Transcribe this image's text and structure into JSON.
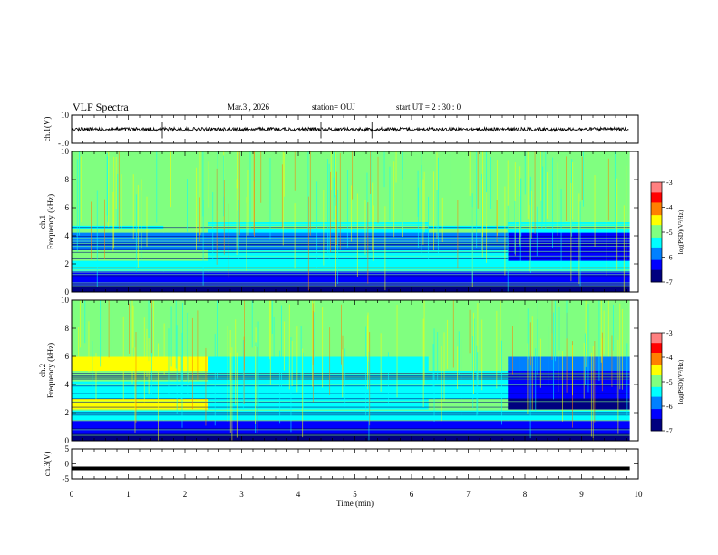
{
  "header": {
    "title": "VLF Spectra",
    "date": "Mar.3 , 2026",
    "station": "station= OUJ",
    "start": "start UT = 2 : 30 : 0"
  },
  "chart_data": [
    {
      "type": "line",
      "title": "",
      "ylabel": "ch.1(V)",
      "xlim": [
        0,
        10
      ],
      "ylim": [
        -10,
        10
      ],
      "yticks": [
        "10",
        "-10"
      ],
      "series": [
        {
          "values_description_level": 0,
          "values": [
            0.2,
            -0.3,
            0.4,
            -0.2,
            0.1,
            -0.4,
            0.3,
            0.0,
            -0.2,
            0.2
          ]
        }
      ]
    },
    {
      "type": "heatmap",
      "ylabel": "ch.1",
      "ylabel2": "Frequency (kHz)",
      "xlim": [
        0,
        10
      ],
      "ylim": [
        0,
        10
      ],
      "yticks": [
        "0",
        "2",
        "4",
        "6",
        "8",
        "10"
      ],
      "colorbar": {
        "label": "log(PSD)(V²/Hz)",
        "ticks": [
          "-3",
          "-4",
          "-5",
          "-6",
          "-7"
        ],
        "range": [
          -7,
          -3
        ]
      }
    },
    {
      "type": "heatmap",
      "ylabel": "ch.2",
      "ylabel2": "Frequency (kHz)",
      "xlim": [
        0,
        10
      ],
      "ylim": [
        0,
        10
      ],
      "yticks": [
        "0",
        "2",
        "4",
        "6",
        "8",
        "10"
      ],
      "colorbar": {
        "label": "log(PSD)(V²/Hz)",
        "ticks": [
          "-3",
          "-4",
          "-5",
          "-6",
          "-7"
        ],
        "range": [
          -7,
          -3
        ]
      }
    },
    {
      "type": "line",
      "ylabel": "ch.3(V)",
      "xlim": [
        0,
        10
      ],
      "ylim": [
        -5,
        5
      ],
      "yticks": [
        "5",
        "0",
        "-5"
      ],
      "series": [
        {
          "values": [
            -1.5,
            -1.5,
            -1.5,
            -1.5,
            -1.5,
            -1.5,
            -1.5,
            -1.5,
            -1.5,
            -1.5
          ]
        }
      ]
    }
  ],
  "xaxis": {
    "label": "Time (min)",
    "ticks": [
      "0",
      "1",
      "2",
      "3",
      "4",
      "5",
      "6",
      "7",
      "8",
      "9",
      "10"
    ]
  },
  "colors": {
    "map": [
      "#00007f",
      "#0000ff",
      "#0080ff",
      "#00ffff",
      "#80ff80",
      "#ffff00",
      "#ff8000",
      "#ff0000",
      "#ff8080",
      "#ffffff"
    ]
  }
}
